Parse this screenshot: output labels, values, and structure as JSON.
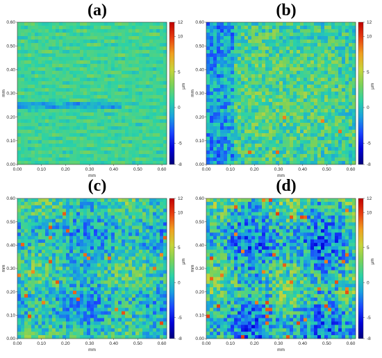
{
  "chart_data": [
    {
      "type": "heatmap",
      "panel_label": "(a)",
      "xlabel": "mm",
      "ylabel": "mm",
      "xlim": [
        0,
        0.62
      ],
      "ylim": [
        0,
        0.6
      ],
      "x_ticks": [
        "0.00",
        "0.10",
        "0.20",
        "0.30",
        "0.40",
        "0.50",
        "0.60"
      ],
      "y_ticks": [
        "0.00",
        "0.10",
        "0.20",
        "0.30",
        "0.40",
        "0.50",
        "0.60"
      ],
      "colorbar": {
        "label": "µm",
        "range": [
          -8,
          12
        ],
        "ticks": [
          "12",
          "10",
          "5",
          "0",
          "-5",
          "-8"
        ]
      },
      "texture": "parallel scratches, mostly green-cyan",
      "mean_level": 1.5,
      "spread": 1.6
    },
    {
      "type": "heatmap",
      "panel_label": "(b)",
      "xlabel": "mm",
      "ylabel": "mm",
      "xlim": [
        0,
        0.62
      ],
      "ylim": [
        0,
        0.6
      ],
      "x_ticks": [
        "0.00",
        "0.10",
        "0.20",
        "0.30",
        "0.40",
        "0.50",
        "0.60"
      ],
      "y_ticks": [
        "0.00",
        "0.10",
        "0.20",
        "0.30",
        "0.40",
        "0.50",
        "0.60"
      ],
      "colorbar": {
        "label": "µm",
        "range": [
          -8,
          12
        ],
        "ticks": [
          "12",
          "10",
          "5",
          "0",
          "-5",
          "-8"
        ]
      },
      "texture": "granular, green centre, blue left",
      "mean_level": 0.5,
      "spread": 3.2
    },
    {
      "type": "heatmap",
      "panel_label": "(c)",
      "xlabel": "mm",
      "ylabel": "mm",
      "xlim": [
        0,
        0.62
      ],
      "ylim": [
        0,
        0.6
      ],
      "x_ticks": [
        "0.00",
        "0.10",
        "0.20",
        "0.30",
        "0.40",
        "0.50",
        "0.60"
      ],
      "y_ticks": [
        "0.00",
        "0.10",
        "0.20",
        "0.30",
        "0.40",
        "0.50",
        "0.60"
      ],
      "colorbar": {
        "label": "µm",
        "range": [
          -8,
          12
        ],
        "ticks": [
          "12",
          "10",
          "5",
          "0",
          "-5",
          "-8"
        ]
      },
      "texture": "granular, mixed green and blue, sparse orange spots",
      "mean_level": 0.3,
      "spread": 3.6
    },
    {
      "type": "heatmap",
      "panel_label": "(d)",
      "xlabel": "mm",
      "ylabel": "mm",
      "xlim": [
        0,
        0.62
      ],
      "ylim": [
        0,
        0.6
      ],
      "x_ticks": [
        "0.00",
        "0.10",
        "0.20",
        "0.30",
        "0.40",
        "0.50",
        "0.60"
      ],
      "y_ticks": [
        "0.00",
        "0.10",
        "0.20",
        "0.30",
        "0.40",
        "0.50",
        "0.60"
      ],
      "colorbar": {
        "label": "µm",
        "range": [
          -8,
          12
        ],
        "ticks": [
          "12",
          "10",
          "5",
          "0",
          "-5",
          "-8"
        ]
      },
      "texture": "granular, more dark-blue regions and orange spots",
      "mean_level": 0.0,
      "spread": 4.2
    }
  ],
  "colors": {
    "colormap": [
      "#00007a",
      "#0000d8",
      "#1a46ff",
      "#1aa0e0",
      "#2ad2a8",
      "#7ad25a",
      "#c8d43a",
      "#f0a020",
      "#e84010",
      "#c00000"
    ]
  }
}
